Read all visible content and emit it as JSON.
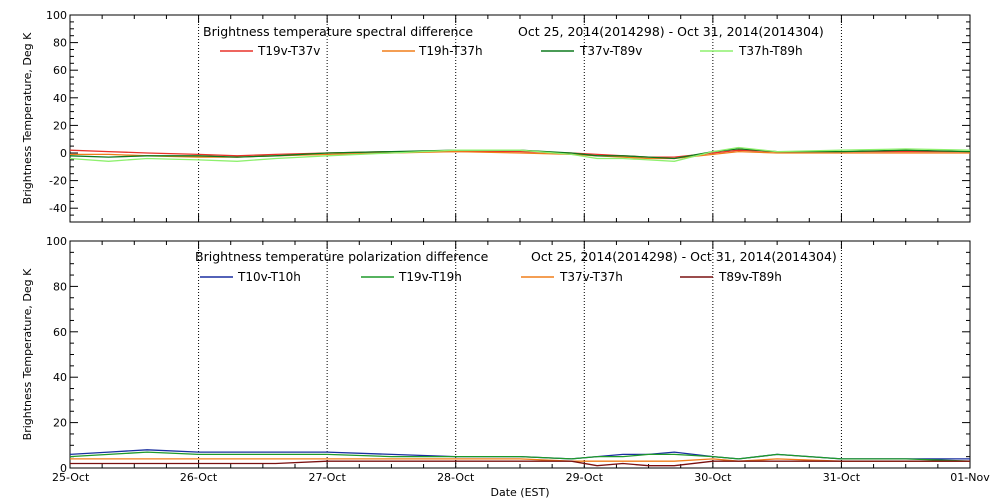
{
  "chart_data": [
    {
      "type": "line",
      "title": "Brightness temperature spectral difference",
      "date_range": "Oct 25, 2014(2014298) - Oct 31, 2014(2014304)",
      "ylabel": "Brightness Temperature, Deg K",
      "ylim": [
        -50,
        100
      ],
      "yticks": [
        "100",
        "80",
        "60",
        "40",
        "20",
        "0",
        "-20",
        "-40"
      ],
      "ytick_values": [
        100,
        80,
        60,
        40,
        20,
        0,
        -20,
        -40
      ],
      "xlim_days": [
        0,
        7
      ],
      "grid": true,
      "legend": "top",
      "series": [
        {
          "name": "T19v-T37v",
          "color": "#e8322a",
          "x": [
            0,
            0.3,
            0.6,
            1.0,
            1.3,
            1.6,
            2.0,
            2.5,
            3.0,
            3.5,
            3.9,
            4.1,
            4.3,
            4.5,
            4.7,
            5.0,
            5.2,
            5.5,
            6.0,
            6.5,
            7.0
          ],
          "values": [
            2,
            1,
            0,
            -1,
            -2,
            -1,
            0,
            1,
            1,
            1,
            0,
            -1,
            -2,
            -3,
            -3,
            0,
            2,
            1,
            1,
            1,
            1
          ]
        },
        {
          "name": "T19h-T37h",
          "color": "#f07e1a",
          "x": [
            0,
            0.3,
            0.6,
            1.0,
            1.3,
            1.6,
            2.0,
            2.5,
            3.0,
            3.5,
            3.9,
            4.1,
            4.3,
            4.5,
            4.7,
            5.0,
            5.2,
            5.5,
            6.0,
            6.5,
            7.0
          ],
          "values": [
            -1,
            -1,
            -2,
            -3,
            -3,
            -2,
            -1,
            0,
            1,
            0,
            -1,
            -2,
            -3,
            -4,
            -4,
            -1,
            1,
            0,
            0,
            0,
            0
          ]
        },
        {
          "name": "T37v-T89v",
          "color": "#0e7a1e",
          "x": [
            0,
            0.3,
            0.6,
            1.0,
            1.3,
            1.6,
            2.0,
            2.5,
            3.0,
            3.5,
            3.9,
            4.1,
            4.3,
            4.5,
            4.7,
            5.0,
            5.2,
            5.5,
            6.0,
            6.5,
            7.0
          ],
          "values": [
            -2,
            -3,
            -2,
            -2,
            -3,
            -2,
            0,
            1,
            2,
            2,
            0,
            -2,
            -2,
            -3,
            -4,
            1,
            3,
            1,
            1,
            2,
            1
          ]
        },
        {
          "name": "T37h-T89h",
          "color": "#8ef06e",
          "x": [
            0,
            0.3,
            0.6,
            1.0,
            1.3,
            1.6,
            2.0,
            2.5,
            3.0,
            3.5,
            3.9,
            4.1,
            4.3,
            4.5,
            4.7,
            5.0,
            5.2,
            5.5,
            6.0,
            6.5,
            7.0
          ],
          "values": [
            -4,
            -6,
            -4,
            -5,
            -6,
            -4,
            -2,
            0,
            2,
            2,
            -1,
            -4,
            -4,
            -5,
            -6,
            1,
            4,
            1,
            2,
            3,
            2
          ]
        }
      ]
    },
    {
      "type": "line",
      "title": "Brightness temperature polarization difference",
      "date_range": "Oct 25, 2014(2014298) - Oct 31, 2014(2014304)",
      "ylabel": "Brightness Temperature, Deg K",
      "xlabel": "Date (EST)",
      "ylim": [
        0,
        100
      ],
      "yticks": [
        "100",
        "80",
        "60",
        "40",
        "20",
        "0"
      ],
      "ytick_values": [
        100,
        80,
        60,
        40,
        20,
        0
      ],
      "xlim_days": [
        0,
        7
      ],
      "xticks": [
        "25-Oct",
        "26-Oct",
        "27-Oct",
        "28-Oct",
        "29-Oct",
        "30-Oct",
        "31-Oct",
        "01-Nov"
      ],
      "grid": true,
      "legend": "top",
      "series": [
        {
          "name": "T10v-T10h",
          "color": "#1a2fa0",
          "x": [
            0,
            0.3,
            0.6,
            1.0,
            1.3,
            1.6,
            2.0,
            2.5,
            3.0,
            3.5,
            3.9,
            4.1,
            4.3,
            4.5,
            4.7,
            5.0,
            5.2,
            5.5,
            6.0,
            6.5,
            7.0
          ],
          "values": [
            6,
            7,
            8,
            7,
            7,
            7,
            7,
            6,
            5,
            5,
            4,
            5,
            6,
            6,
            7,
            5,
            4,
            6,
            4,
            4,
            4
          ]
        },
        {
          "name": "T19v-T19h",
          "color": "#1e9a2a",
          "x": [
            0,
            0.3,
            0.6,
            1.0,
            1.3,
            1.6,
            2.0,
            2.5,
            3.0,
            3.5,
            3.9,
            4.1,
            4.3,
            4.5,
            4.7,
            5.0,
            5.2,
            5.5,
            6.0,
            6.5,
            7.0
          ],
          "values": [
            5,
            6,
            7,
            6,
            6,
            6,
            6,
            5,
            5,
            5,
            4,
            5,
            5,
            6,
            6,
            5,
            4,
            6,
            4,
            4,
            3
          ]
        },
        {
          "name": "T37v-T37h",
          "color": "#f07e1a",
          "x": [
            0,
            0.3,
            0.6,
            1.0,
            1.3,
            1.6,
            2.0,
            2.5,
            3.0,
            3.5,
            3.9,
            4.1,
            4.3,
            4.5,
            4.7,
            5.0,
            5.2,
            5.5,
            6.0,
            6.5,
            7.0
          ],
          "values": [
            4,
            4,
            4,
            4,
            4,
            4,
            4,
            4,
            4,
            4,
            3,
            3,
            3,
            3,
            3,
            4,
            3,
            4,
            3,
            3,
            3
          ]
        },
        {
          "name": "T89v-T89h",
          "color": "#7a1010",
          "x": [
            0,
            0.3,
            0.6,
            1.0,
            1.3,
            1.6,
            2.0,
            2.5,
            3.0,
            3.5,
            3.9,
            4.1,
            4.3,
            4.5,
            4.7,
            5.0,
            5.2,
            5.5,
            6.0,
            6.5,
            7.0
          ],
          "values": [
            2,
            2,
            2,
            2,
            2,
            2,
            3,
            3,
            3,
            3,
            3,
            1,
            2,
            1,
            1,
            3,
            3,
            3,
            3,
            3,
            3
          ]
        }
      ]
    }
  ]
}
